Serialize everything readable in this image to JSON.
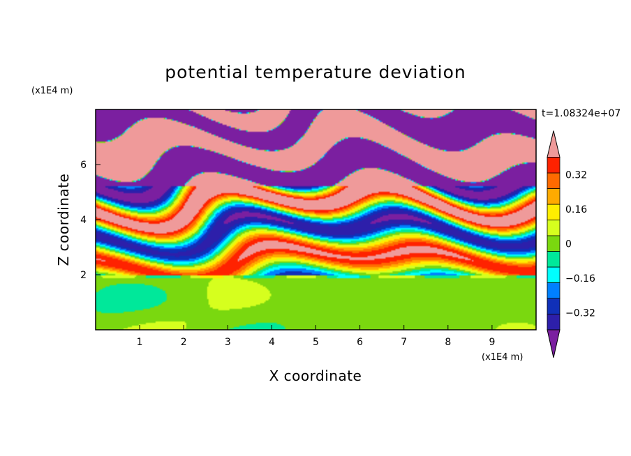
{
  "chart_data": {
    "type": "heatmap",
    "title": "potential temperature deviation",
    "xlabel": "X coordinate",
    "ylabel": "Z coordinate",
    "x_unit": "(x1E4 m)",
    "y_unit": "(x1E4 m)",
    "time_label": "t=1.08324e+07",
    "xlim": [
      0,
      10
    ],
    "ylim": [
      0,
      8
    ],
    "x_ticks": [
      1,
      2,
      3,
      4,
      5,
      6,
      7,
      8,
      9
    ],
    "y_ticks": [
      2,
      4,
      6
    ],
    "x_tick_labels": [
      "1",
      "2",
      "3",
      "4",
      "5",
      "6",
      "7",
      "8",
      "9"
    ],
    "y_tick_labels": [
      "2",
      "4",
      "6"
    ],
    "colorbar": {
      "levels": [
        -0.48,
        -0.4,
        -0.32,
        -0.24,
        -0.16,
        -0.08,
        0,
        0.08,
        0.16,
        0.24,
        0.32,
        0.4,
        0.48
      ],
      "tick_values": [
        0.32,
        0.16,
        0,
        -0.16,
        -0.32
      ],
      "tick_labels": [
        "0.32",
        "0.16",
        "0",
        "−0.16",
        "−0.32"
      ],
      "colors": [
        "#7b1fa0",
        "#2d1faa",
        "#1030b8",
        "#0080ff",
        "#00ffff",
        "#00e89a",
        "#7ad80f",
        "#d6ff1e",
        "#ffee00",
        "#ffaa00",
        "#ff6a00",
        "#ff2200",
        "#ef9a9a"
      ],
      "extend": "both"
    }
  }
}
